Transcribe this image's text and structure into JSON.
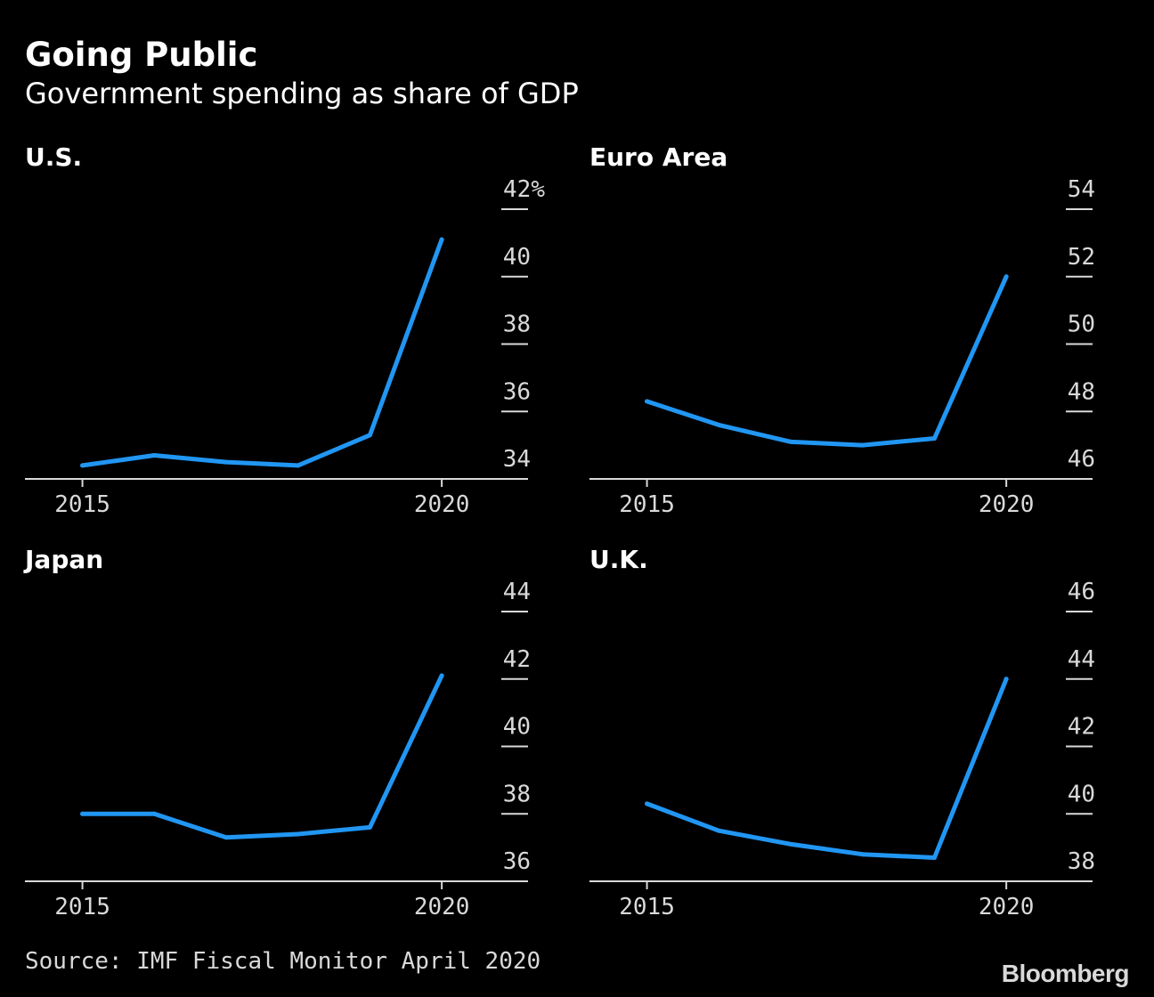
{
  "title": "Going Public",
  "subtitle": "Government spending as share of GDP",
  "source": "Source: IMF Fiscal Monitor April 2020",
  "logo": "Bloomberg",
  "colors": {
    "line": "#2196f3",
    "axis": "#d9d9d9",
    "background": "#000000"
  },
  "chart_data": [
    {
      "type": "line",
      "title": "U.S.",
      "x": [
        2015,
        2016,
        2017,
        2018,
        2019,
        2020
      ],
      "series": [
        {
          "values": [
            34.4,
            34.7,
            34.5,
            34.4,
            35.3,
            41.1
          ]
        }
      ],
      "ylim": [
        34,
        42
      ],
      "yticks": [
        34,
        36,
        38,
        40,
        42
      ],
      "ytick_labels": [
        "34",
        "36",
        "38",
        "40",
        "42%"
      ],
      "xticks": [
        2015,
        2020
      ],
      "xlim": [
        2014.2,
        2021.2
      ]
    },
    {
      "type": "line",
      "title": "Euro Area",
      "x": [
        2015,
        2016,
        2017,
        2018,
        2019,
        2020
      ],
      "series": [
        {
          "values": [
            48.3,
            47.6,
            47.1,
            47.0,
            47.2,
            52.0
          ]
        }
      ],
      "ylim": [
        46,
        54
      ],
      "yticks": [
        46,
        48,
        50,
        52,
        54
      ],
      "ytick_labels": [
        "46",
        "48",
        "50",
        "52",
        "54"
      ],
      "xticks": [
        2015,
        2020
      ],
      "xlim": [
        2014.2,
        2021.2
      ]
    },
    {
      "type": "line",
      "title": "Japan",
      "x": [
        2015,
        2016,
        2017,
        2018,
        2019,
        2020
      ],
      "series": [
        {
          "values": [
            38.0,
            38.0,
            37.3,
            37.4,
            37.6,
            42.1
          ]
        }
      ],
      "ylim": [
        36,
        44
      ],
      "yticks": [
        36,
        38,
        40,
        42,
        44
      ],
      "ytick_labels": [
        "36",
        "38",
        "40",
        "42",
        "44"
      ],
      "xticks": [
        2015,
        2020
      ],
      "xlim": [
        2014.2,
        2021.2
      ]
    },
    {
      "type": "line",
      "title": "U.K.",
      "x": [
        2015,
        2016,
        2017,
        2018,
        2019,
        2020
      ],
      "series": [
        {
          "values": [
            40.3,
            39.5,
            39.1,
            38.8,
            38.7,
            44.0
          ]
        }
      ],
      "ylim": [
        38,
        46
      ],
      "yticks": [
        38,
        40,
        42,
        44,
        46
      ],
      "ytick_labels": [
        "38",
        "40",
        "42",
        "44",
        "46"
      ],
      "xticks": [
        2015,
        2020
      ],
      "xlim": [
        2014.2,
        2021.2
      ]
    }
  ]
}
